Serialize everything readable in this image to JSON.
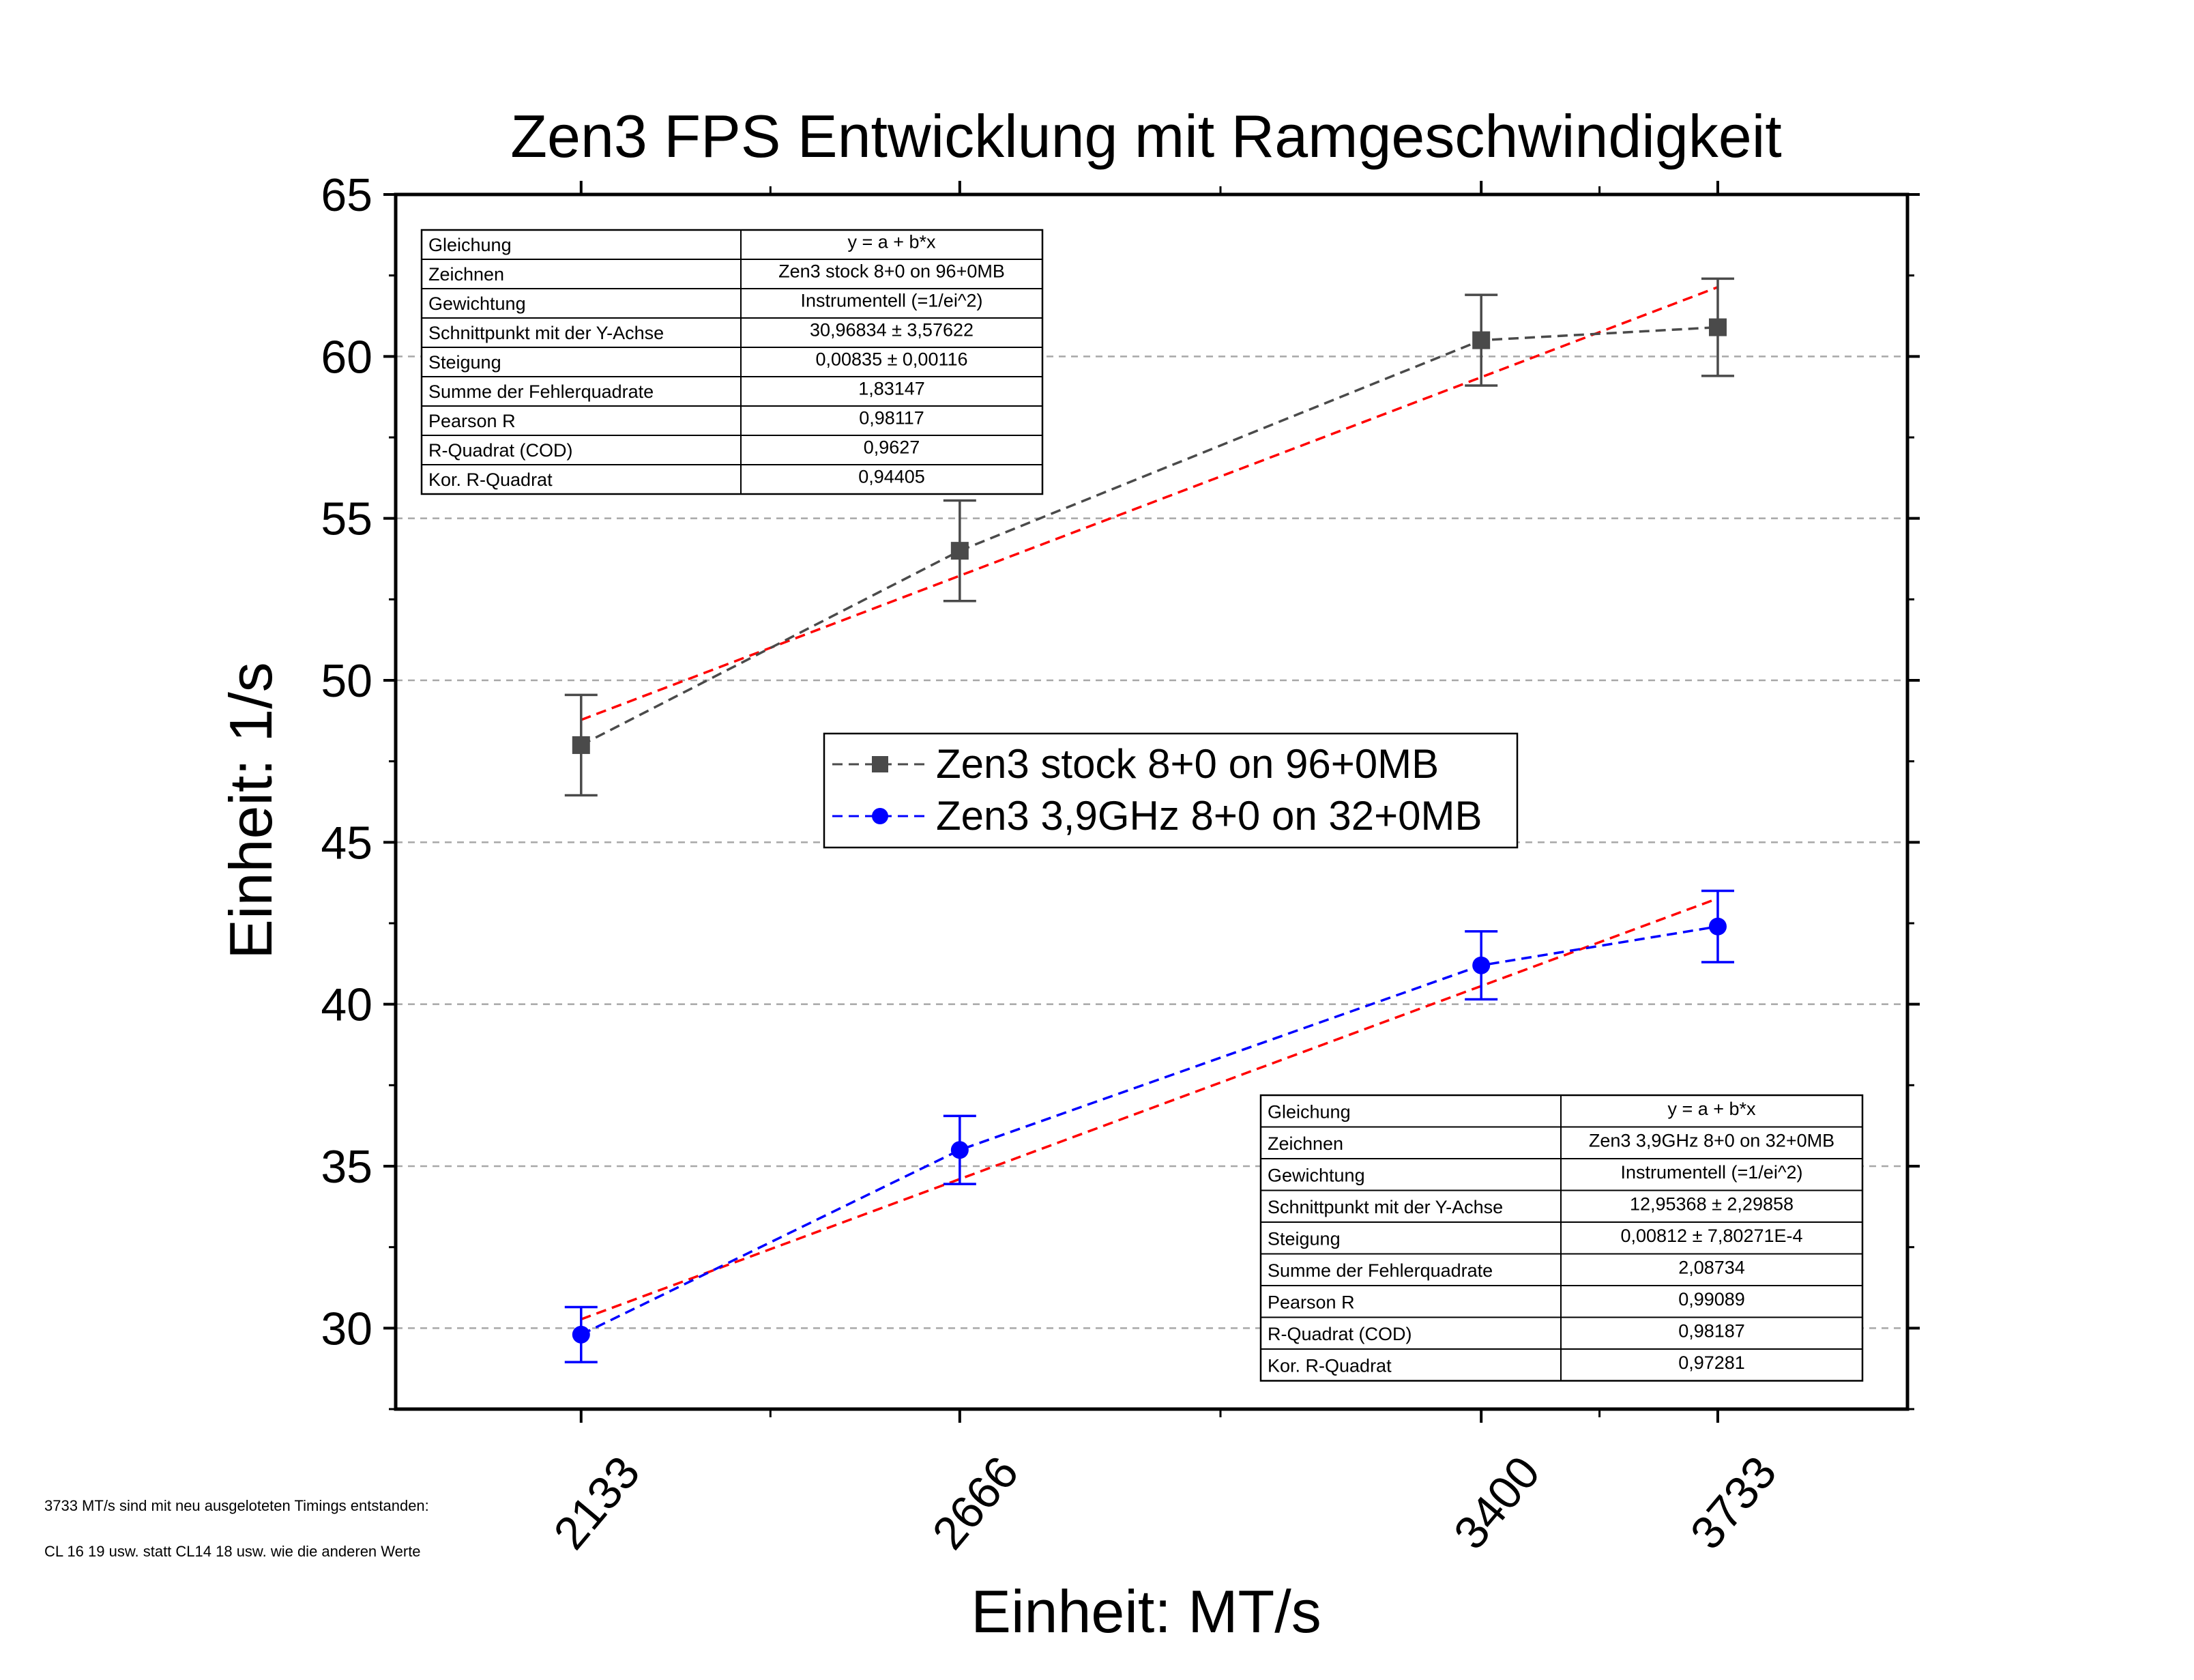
{
  "chart_data": {
    "type": "scatter",
    "title": "Zen3 FPS Entwicklung mit Ramgeschwindigkeit",
    "xlabel": "Einheit: MT/s",
    "ylabel": "Einheit: 1/s",
    "x_ticks": [
      2133,
      2666,
      3400,
      3733
    ],
    "xlim": [
      1872,
      4000
    ],
    "ylim": [
      27.5,
      65
    ],
    "y_ticks": [
      30,
      35,
      40,
      45,
      50,
      55,
      60,
      65
    ],
    "grid": true,
    "legend_position": "center",
    "series": [
      {
        "name": "Zen3 stock 8+0 on 96+0MB",
        "color": "#4a4a4a",
        "marker": "square",
        "x": [
          2133,
          2666,
          3400,
          3733
        ],
        "y": [
          48.0,
          54.0,
          60.5,
          60.9
        ],
        "err": [
          1.55,
          1.55,
          1.4,
          1.5
        ],
        "fit": {
          "intercept": 30.96834,
          "slope": 0.00835,
          "color": "#ff0000"
        },
        "stats": [
          [
            "Gleichung",
            "y = a + b*x"
          ],
          [
            "Zeichnen",
            "Zen3 stock 8+0 on 96+0MB"
          ],
          [
            "Gewichtung",
            "Instrumentell (=1/ei^2)"
          ],
          [
            "Schnittpunkt mit der Y-Achse",
            "30,96834 ± 3,57622"
          ],
          [
            "Steigung",
            "0,00835 ± 0,00116"
          ],
          [
            "Summe der Fehlerquadrate",
            "1,83147"
          ],
          [
            "Pearson R",
            "0,98117"
          ],
          [
            "R-Quadrat (COD)",
            "0,9627"
          ],
          [
            "Kor. R-Quadrat",
            "0,94405"
          ]
        ]
      },
      {
        "name": "Zen3 3,9GHz 8+0 on 32+0MB",
        "color": "#0000ff",
        "marker": "circle",
        "x": [
          2133,
          2666,
          3400,
          3733
        ],
        "y": [
          29.8,
          35.5,
          41.2,
          42.4
        ],
        "err": [
          0.85,
          1.05,
          1.05,
          1.1
        ],
        "fit": {
          "intercept": 12.95368,
          "slope": 0.00812,
          "color": "#ff0000"
        },
        "stats": [
          [
            "Gleichung",
            "y = a + b*x"
          ],
          [
            "Zeichnen",
            "Zen3 3,9GHz 8+0 on 32+0MB"
          ],
          [
            "Gewichtung",
            "Instrumentell (=1/ei^2)"
          ],
          [
            "Schnittpunkt mit der Y-Achse",
            "12,95368 ± 2,29858"
          ],
          [
            "Steigung",
            "0,00812 ± 7,80271E-4"
          ],
          [
            "Summe der Fehlerquadrate",
            "2,08734"
          ],
          [
            "Pearson R",
            "0,99089"
          ],
          [
            "R-Quadrat (COD)",
            "0,98187"
          ],
          [
            "Kor. R-Quadrat",
            "0,97281"
          ]
        ]
      }
    ]
  },
  "notes": {
    "line1": "3733 MT/s sind mit neu ausgeloteten Timings entstanden:",
    "line2": "CL 16 19 usw. statt CL14 18 usw. wie die anderen Werte"
  }
}
